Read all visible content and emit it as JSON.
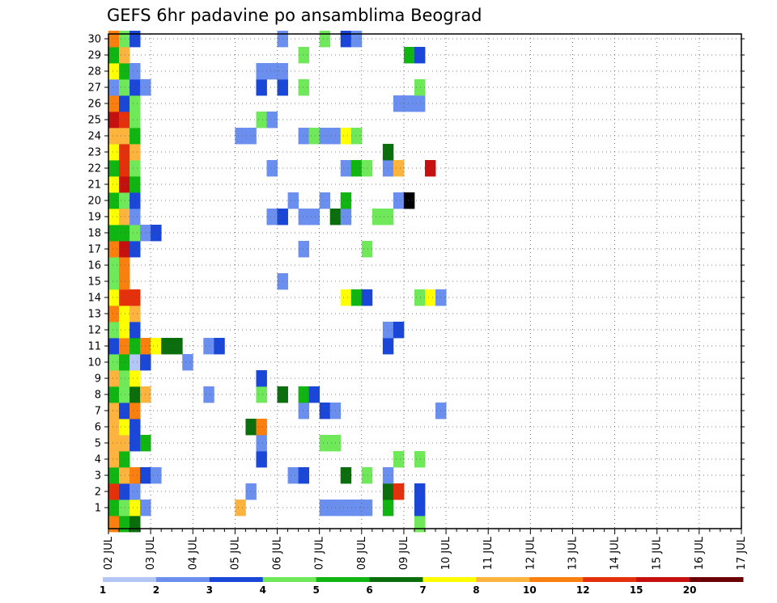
{
  "chart_data": {
    "type": "heatmap",
    "title": "GEFS 6hr padavine po ansamblima Beograd",
    "xlabel": "",
    "ylabel": "",
    "x_ticks": [
      "02 JUL",
      "03 JUL",
      "04 JUL",
      "05 JUL",
      "06 JUL",
      "07 JUL",
      "08 JUL",
      "09 JUL",
      "10 JUL",
      "11 JUL",
      "12 JUL",
      "13 JUL",
      "14 JUL",
      "15 JUL",
      "16 JUL",
      "17 JUL"
    ],
    "y_ticks": [
      1,
      2,
      3,
      4,
      5,
      6,
      7,
      8,
      9,
      10,
      11,
      12,
      13,
      14,
      15,
      16,
      17,
      18,
      19,
      20,
      21,
      22,
      23,
      24,
      25,
      26,
      27,
      28,
      29,
      30
    ],
    "y_range": [
      0,
      30
    ],
    "steps_per_day": 4,
    "grid": "dotted",
    "legend": {
      "position": "bottom",
      "colors": [
        "#b3c6f5",
        "#6b8fef",
        "#1b47d8",
        "#6fe85a",
        "#10b512",
        "#0a6e0c",
        "#ffff00",
        "#fdb43e",
        "#f97f0f",
        "#e5300c",
        "#c5100f",
        "#6b0000"
      ],
      "labels": [
        "1",
        "2",
        "3",
        "4",
        "5",
        "6",
        "7",
        "8",
        "10",
        "12",
        "15",
        "20"
      ]
    },
    "rows": {
      "30": [
        [
          0,
          8
        ],
        [
          1,
          3
        ],
        [
          2,
          2
        ],
        [
          16,
          1
        ],
        [
          20,
          3
        ],
        [
          22,
          2
        ],
        [
          23,
          1
        ]
      ],
      "29": [
        [
          0,
          4
        ],
        [
          1,
          7
        ],
        [
          18,
          3
        ],
        [
          28,
          4
        ],
        [
          29,
          2
        ]
      ],
      "28": [
        [
          0,
          6
        ],
        [
          1,
          4
        ],
        [
          2,
          1
        ],
        [
          14,
          1
        ],
        [
          15,
          1
        ],
        [
          16,
          1
        ]
      ],
      "27": [
        [
          0,
          1
        ],
        [
          1,
          3
        ],
        [
          2,
          2
        ],
        [
          3,
          1
        ],
        [
          14,
          2
        ],
        [
          16,
          2
        ],
        [
          18,
          3
        ],
        [
          29,
          3
        ]
      ],
      "26": [
        [
          0,
          8
        ],
        [
          1,
          2
        ],
        [
          2,
          3
        ],
        [
          27,
          1
        ],
        [
          28,
          1
        ],
        [
          29,
          1
        ]
      ],
      "25": [
        [
          0,
          10
        ],
        [
          1,
          9
        ],
        [
          2,
          3
        ],
        [
          14,
          3
        ],
        [
          15,
          1
        ]
      ],
      "24": [
        [
          0,
          7
        ],
        [
          1,
          7
        ],
        [
          2,
          4
        ],
        [
          12,
          1
        ],
        [
          13,
          1
        ],
        [
          18,
          1
        ],
        [
          19,
          3
        ],
        [
          20,
          1
        ],
        [
          21,
          1
        ],
        [
          22,
          6
        ],
        [
          23,
          3
        ]
      ],
      "23": [
        [
          0,
          6
        ],
        [
          1,
          9
        ],
        [
          2,
          7
        ],
        [
          26,
          5
        ]
      ],
      "22": [
        [
          0,
          4
        ],
        [
          1,
          9
        ],
        [
          2,
          3
        ],
        [
          15,
          1
        ],
        [
          22,
          1
        ],
        [
          23,
          4
        ],
        [
          24,
          3
        ],
        [
          26,
          1
        ],
        [
          27,
          7
        ],
        [
          30,
          10
        ]
      ],
      "21": [
        [
          0,
          6
        ],
        [
          1,
          10
        ],
        [
          2,
          4
        ]
      ],
      "20": [
        [
          0,
          4
        ],
        [
          1,
          3
        ],
        [
          2,
          2
        ],
        [
          17,
          1
        ],
        [
          20,
          1
        ],
        [
          22,
          4
        ],
        [
          27,
          1
        ],
        [
          28,
          12
        ]
      ],
      "19": [
        [
          0,
          6
        ],
        [
          1,
          7
        ],
        [
          2,
          1
        ],
        [
          15,
          1
        ],
        [
          16,
          2
        ],
        [
          18,
          1
        ],
        [
          19,
          1
        ],
        [
          21,
          5
        ],
        [
          22,
          1
        ],
        [
          25,
          3
        ],
        [
          26,
          3
        ]
      ],
      "18": [
        [
          0,
          4
        ],
        [
          1,
          4
        ],
        [
          2,
          3
        ],
        [
          3,
          1
        ],
        [
          4,
          2
        ]
      ],
      "17": [
        [
          0,
          8
        ],
        [
          1,
          10
        ],
        [
          2,
          2
        ],
        [
          18,
          1
        ],
        [
          24,
          3
        ]
      ],
      "16": [
        [
          0,
          3
        ],
        [
          1,
          8
        ]
      ],
      "15": [
        [
          0,
          3
        ],
        [
          1,
          8
        ],
        [
          16,
          1
        ]
      ],
      "14": [
        [
          0,
          6
        ],
        [
          1,
          9
        ],
        [
          2,
          9
        ],
        [
          22,
          6
        ],
        [
          23,
          4
        ],
        [
          24,
          2
        ],
        [
          29,
          3
        ],
        [
          30,
          6
        ],
        [
          31,
          1
        ]
      ],
      "13": [
        [
          0,
          8
        ],
        [
          1,
          6
        ],
        [
          2,
          7
        ]
      ],
      "12": [
        [
          0,
          3
        ],
        [
          1,
          6
        ],
        [
          2,
          2
        ],
        [
          26,
          1
        ],
        [
          27,
          2
        ]
      ],
      "11": [
        [
          0,
          2
        ],
        [
          1,
          8
        ],
        [
          2,
          4
        ],
        [
          3,
          8
        ],
        [
          4,
          6
        ],
        [
          5,
          5
        ],
        [
          6,
          5
        ],
        [
          9,
          1
        ],
        [
          10,
          2
        ],
        [
          26,
          2
        ]
      ],
      "10": [
        [
          0,
          3
        ],
        [
          1,
          4
        ],
        [
          2,
          0
        ],
        [
          3,
          2
        ],
        [
          7,
          1
        ]
      ],
      "9": [
        [
          0,
          7
        ],
        [
          1,
          3
        ],
        [
          2,
          6
        ],
        [
          14,
          2
        ]
      ],
      "8": [
        [
          0,
          4
        ],
        [
          1,
          3
        ],
        [
          2,
          5
        ],
        [
          3,
          7
        ],
        [
          9,
          1
        ],
        [
          14,
          3
        ],
        [
          16,
          5
        ],
        [
          18,
          4
        ],
        [
          19,
          2
        ]
      ],
      "7": [
        [
          0,
          7
        ],
        [
          1,
          2
        ],
        [
          2,
          8
        ],
        [
          18,
          1
        ],
        [
          20,
          2
        ],
        [
          21,
          1
        ],
        [
          31,
          1
        ]
      ],
      "6": [
        [
          0,
          7
        ],
        [
          1,
          6
        ],
        [
          2,
          2
        ],
        [
          13,
          5
        ],
        [
          14,
          8
        ]
      ],
      "5": [
        [
          0,
          7
        ],
        [
          1,
          7
        ],
        [
          2,
          2
        ],
        [
          3,
          4
        ],
        [
          14,
          1
        ],
        [
          20,
          3
        ],
        [
          21,
          3
        ]
      ],
      "4": [
        [
          0,
          7
        ],
        [
          1,
          4
        ],
        [
          14,
          2
        ],
        [
          27,
          3
        ],
        [
          29,
          3
        ]
      ],
      "3": [
        [
          0,
          4
        ],
        [
          1,
          7
        ],
        [
          2,
          8
        ],
        [
          3,
          2
        ],
        [
          4,
          1
        ],
        [
          17,
          1
        ],
        [
          18,
          2
        ],
        [
          22,
          5
        ],
        [
          24,
          3
        ],
        [
          26,
          1
        ]
      ],
      "2": [
        [
          0,
          9
        ],
        [
          1,
          2
        ],
        [
          2,
          1
        ],
        [
          13,
          1
        ],
        [
          26,
          5
        ],
        [
          27,
          9
        ],
        [
          29,
          2
        ]
      ],
      "1": [
        [
          0,
          4
        ],
        [
          1,
          3
        ],
        [
          2,
          6
        ],
        [
          3,
          1
        ],
        [
          12,
          7
        ],
        [
          20,
          1
        ],
        [
          21,
          1
        ],
        [
          22,
          1
        ],
        [
          23,
          1
        ],
        [
          24,
          1
        ],
        [
          26,
          4
        ],
        [
          29,
          2
        ]
      ],
      "0": [
        [
          0,
          8
        ],
        [
          1,
          4
        ],
        [
          2,
          5
        ],
        [
          29,
          3
        ]
      ]
    }
  }
}
